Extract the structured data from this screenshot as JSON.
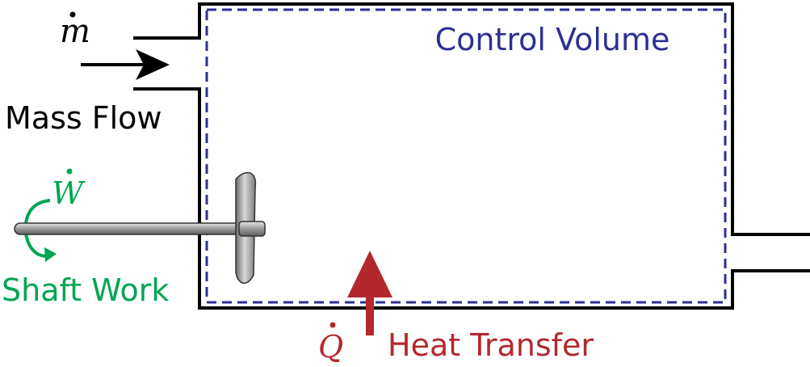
{
  "labels": {
    "control_volume": "Control Volume",
    "mass_flow": "Mass Flow",
    "mass_flow_symbol": "m",
    "shaft_work": "Shaft Work",
    "shaft_work_symbol": "W",
    "heat_transfer": "Heat Transfer",
    "heat_transfer_symbol": "Q"
  },
  "colors": {
    "outline": "#000000",
    "control_volume": "#2e3192",
    "shaft_work": "#00a651",
    "heat_transfer": "#b3282d",
    "shaft_gray": "#8c8c8c"
  }
}
